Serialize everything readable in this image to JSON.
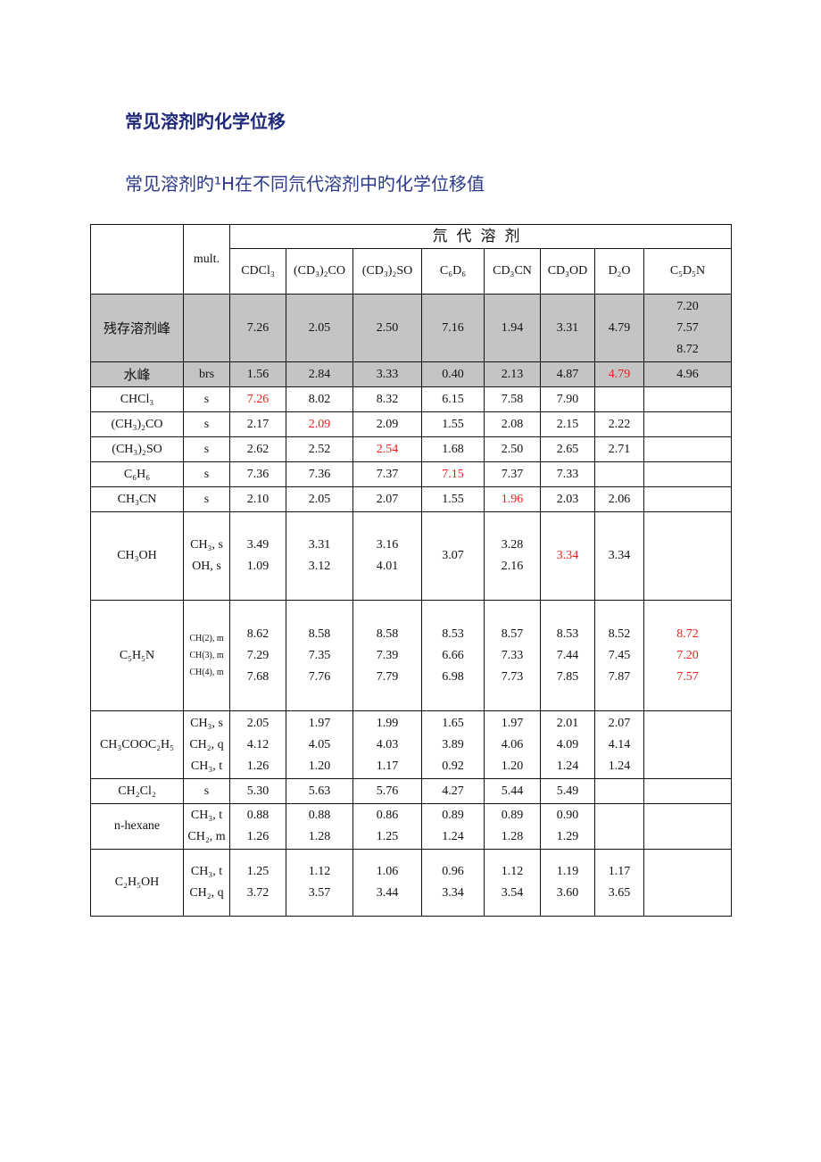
{
  "title": "常见溶剂旳化学位移",
  "subtitle": "常见溶剂旳¹H在不同氘代溶剂中旳化学位移值",
  "table": {
    "group_header": "氘代溶剂",
    "mult_header": "mult.",
    "solvents": [
      "CDCl₃",
      "(CD₃)₂CO",
      "(CD₃)₂SO",
      "C₆D₆",
      "CD₃CN",
      "CD₃OD",
      "D₂O",
      "C₅D₅N"
    ],
    "rows": [
      {
        "name": "残存溶剂峰",
        "mult": "",
        "shade": true,
        "values": [
          "7.26",
          "2.05",
          "2.50",
          "7.16",
          "1.94",
          "3.31",
          "4.79",
          "7.20\n7.57\n8.72"
        ],
        "red": []
      },
      {
        "name": "水峰",
        "mult": "brs",
        "shade": true,
        "values": [
          "1.56",
          "2.84",
          "3.33",
          "0.40",
          "2.13",
          "4.87",
          "4.79",
          "4.96"
        ],
        "red": [
          6
        ]
      },
      {
        "name": "CHCl₃",
        "mult": "s",
        "values": [
          "7.26",
          "8.02",
          "8.32",
          "6.15",
          "7.58",
          "7.90",
          "",
          ""
        ],
        "red": [
          0
        ]
      },
      {
        "name": "(CH₃)₂CO",
        "mult": "s",
        "values": [
          "2.17",
          "2.09",
          "2.09",
          "1.55",
          "2.08",
          "2.15",
          "2.22",
          ""
        ],
        "red": [
          1
        ]
      },
      {
        "name": "(CH₃)₂SO",
        "mult": "s",
        "values": [
          "2.62",
          "2.52",
          "2.54",
          "1.68",
          "2.50",
          "2.65",
          "2.71",
          ""
        ],
        "red": [
          2
        ]
      },
      {
        "name": "C₆H₆",
        "mult": "s",
        "values": [
          "7.36",
          "7.36",
          "7.37",
          "7.15",
          "7.37",
          "7.33",
          "",
          ""
        ],
        "red": [
          3
        ]
      },
      {
        "name": "CH₃CN",
        "mult": "s",
        "values": [
          "2.10",
          "2.05",
          "2.07",
          "1.55",
          "1.96",
          "2.03",
          "2.06",
          ""
        ],
        "red": [
          4
        ]
      },
      {
        "name": "CH₃OH",
        "mult": "CH₃, s\nOH, s",
        "values": [
          "3.49\n1.09",
          "3.31\n3.12",
          "3.16\n4.01",
          "3.07",
          "3.28\n2.16",
          "3.34",
          "3.34",
          ""
        ],
        "red": [
          5
        ]
      },
      {
        "name": "C₅H₅N",
        "mult": "CH(2), m\nCH(3), m\nCH(4), m",
        "multSmall": true,
        "values": [
          "8.62\n7.29\n7.68",
          "8.58\n7.35\n7.76",
          "8.58\n7.39\n7.79",
          "8.53\n6.66\n6.98",
          "8.57\n7.33\n7.73",
          "8.53\n7.44\n7.85",
          "8.52\n7.45\n7.87",
          "8.72\n7.20\n7.57"
        ],
        "red": [
          7
        ]
      },
      {
        "name": "CH₃COOC₂H₅",
        "mult": "CH₃, s\nCH₂, q\nCH₃, t",
        "values": [
          "2.05\n4.12\n1.26",
          "1.97\n4.05\n1.20",
          "1.99\n4.03\n1.17",
          "1.65\n3.89\n0.92",
          "1.97\n4.06\n1.20",
          "2.01\n4.09\n1.24",
          "2.07\n4.14\n1.24",
          ""
        ],
        "red": []
      },
      {
        "name": "CH₂Cl₂",
        "mult": "s",
        "values": [
          "5.30",
          "5.63",
          "5.76",
          "4.27",
          "5.44",
          "5.49",
          "",
          ""
        ],
        "red": []
      },
      {
        "name": "n-hexane",
        "mult": "CH₃, t\nCH₂, m",
        "values": [
          "0.88\n1.26",
          "0.88\n1.28",
          "0.86\n1.25",
          "0.89\n1.24",
          "0.89\n1.28",
          "0.90\n1.29",
          "",
          ""
        ],
        "red": []
      },
      {
        "name": "C₂H₅OH",
        "mult": "CH₃, t\nCH₂, q",
        "values": [
          "1.25\n3.72",
          "1.12\n3.57",
          "1.06\n3.44",
          "0.96\n3.34",
          "1.12\n3.54",
          "1.19\n3.60",
          "1.17\n3.65",
          ""
        ],
        "red": []
      }
    ]
  },
  "colors": {
    "title": "#1f2a7a",
    "highlight": "#e8201c",
    "shade": "#c4c4c4"
  }
}
